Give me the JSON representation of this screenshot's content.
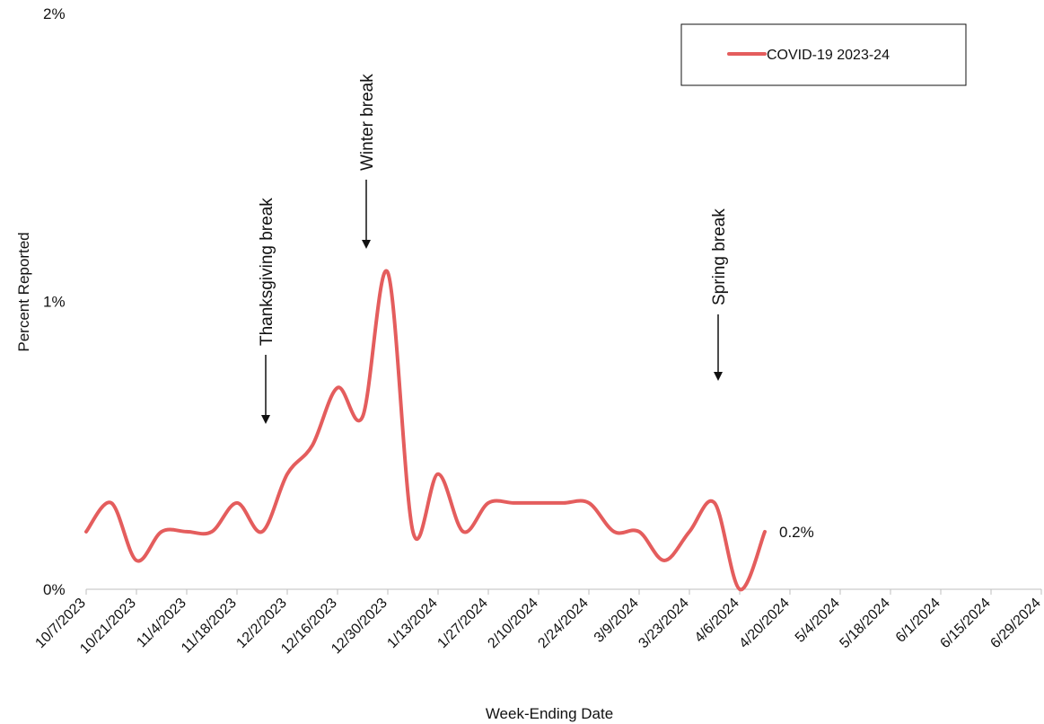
{
  "chart_data": {
    "type": "line",
    "xlabel": "Week-Ending Date",
    "ylabel": "Percent Reported",
    "y_ticks": [
      "0%",
      "1%",
      "2%"
    ],
    "ylim": [
      0,
      2
    ],
    "x_tick_labels": [
      "10/7/2023",
      "10/21/2023",
      "11/4/2023",
      "11/18/2023",
      "12/2/2023",
      "12/16/2023",
      "12/30/2023",
      "1/13/2024",
      "1/27/2024",
      "2/10/2024",
      "2/24/2024",
      "3/9/2024",
      "3/23/2024",
      "4/6/2024",
      "4/20/2024",
      "5/4/2024",
      "5/18/2024",
      "6/1/2024",
      "6/15/2024",
      "6/29/2024"
    ],
    "x": [
      "10/7/2023",
      "10/14/2023",
      "10/21/2023",
      "10/28/2023",
      "11/4/2023",
      "11/11/2023",
      "11/18/2023",
      "11/25/2023",
      "12/2/2023",
      "12/9/2023",
      "12/16/2023",
      "12/23/2023",
      "12/30/2023",
      "1/6/2024",
      "1/13/2024",
      "1/20/2024",
      "1/27/2024",
      "2/3/2024",
      "2/10/2024",
      "2/17/2024",
      "2/24/2024",
      "3/2/2024",
      "3/9/2024",
      "3/16/2024",
      "3/23/2024",
      "3/30/2024",
      "4/6/2024",
      "4/13/2024"
    ],
    "series": [
      {
        "name": "COVID-19 2023-24",
        "color": "#e45d5d",
        "values": [
          0.2,
          0.3,
          0.1,
          0.2,
          0.2,
          0.2,
          0.3,
          0.2,
          0.4,
          0.5,
          0.7,
          0.6,
          1.1,
          0.2,
          0.4,
          0.2,
          0.3,
          0.3,
          0.3,
          0.3,
          0.3,
          0.2,
          0.2,
          0.1,
          0.2,
          0.3,
          0.0,
          0.2
        ]
      }
    ],
    "end_label": "0.2%",
    "annotations": [
      {
        "text": "Thanksgiving break",
        "x": "11/25/2023"
      },
      {
        "text": "Winter break",
        "x": "12/23/2023"
      },
      {
        "text": "Spring break",
        "x": "3/30/2024"
      }
    ],
    "grid": false,
    "legend_position": "top-right"
  }
}
